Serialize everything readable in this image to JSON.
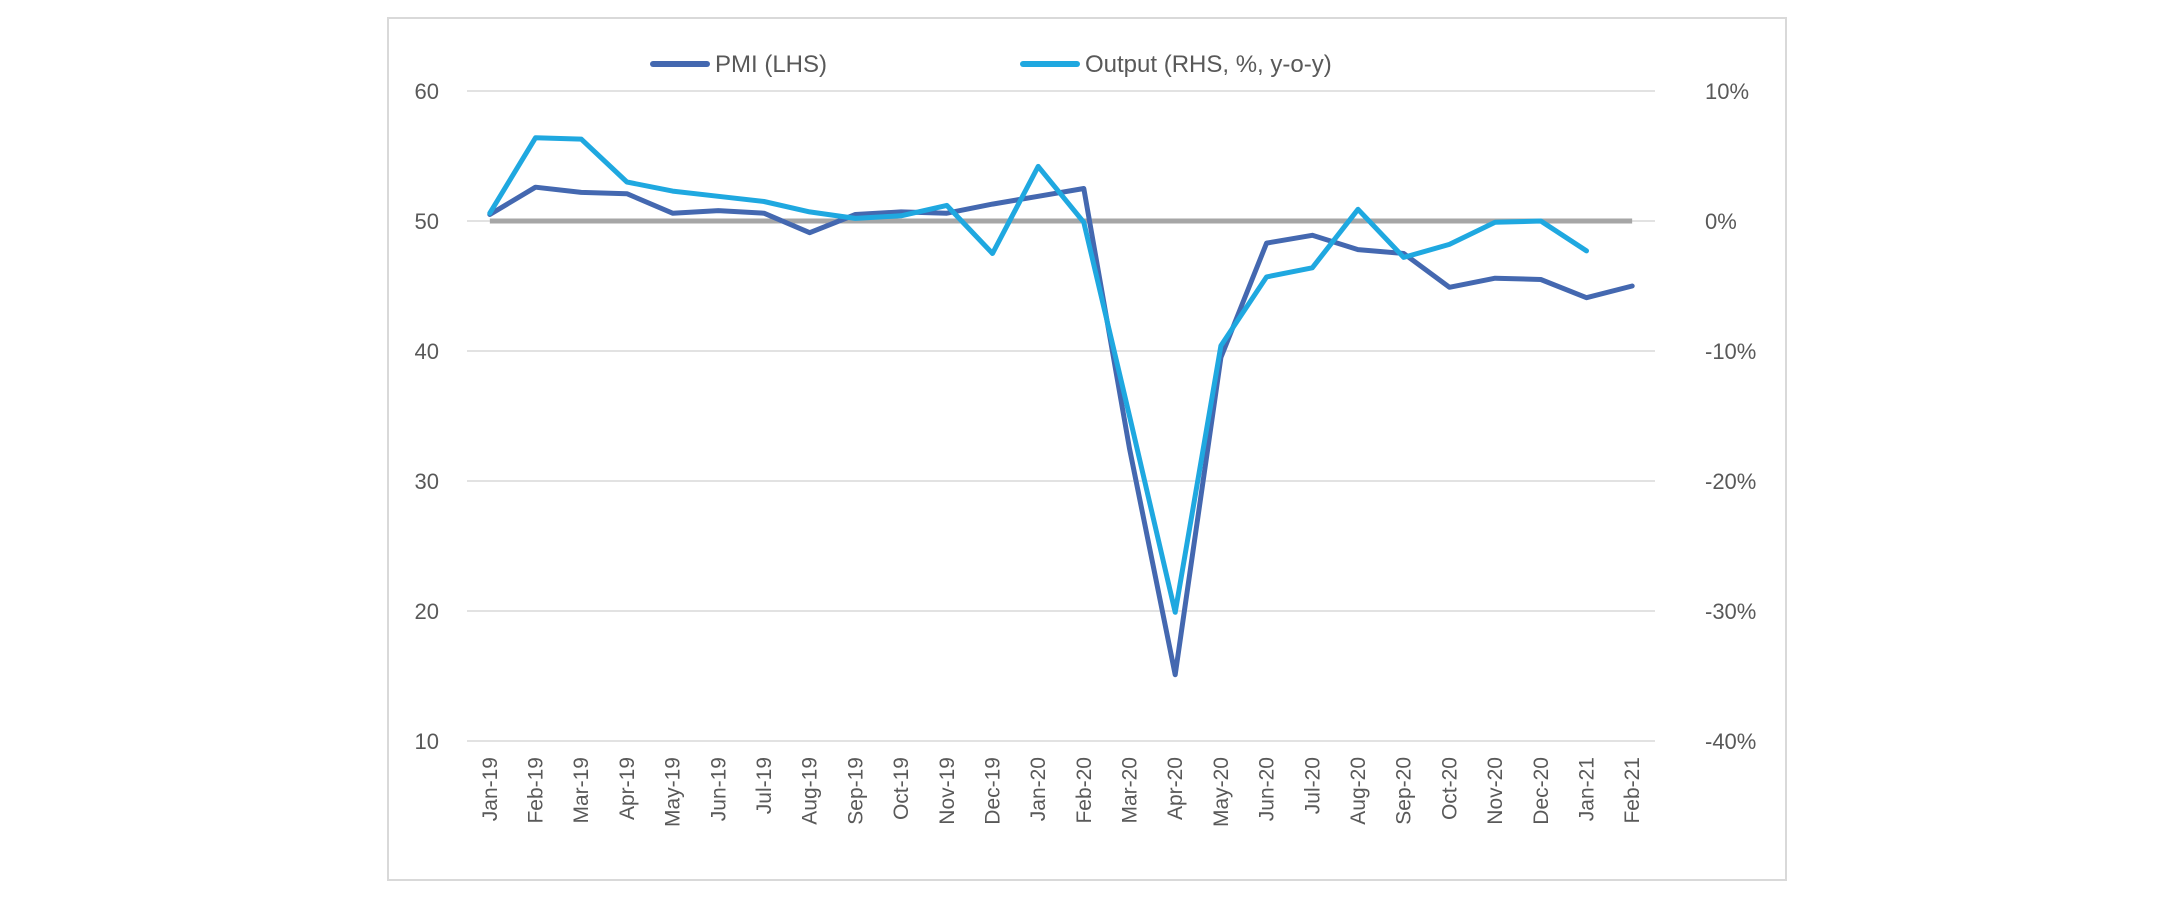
{
  "chart_data": {
    "type": "line",
    "title": "",
    "categories": [
      "Jan-19",
      "Feb-19",
      "Mar-19",
      "Apr-19",
      "May-19",
      "Jun-19",
      "Jul-19",
      "Aug-19",
      "Sep-19",
      "Oct-19",
      "Nov-19",
      "Dec-19",
      "Jan-20",
      "Feb-20",
      "Mar-20",
      "Apr-20",
      "May-20",
      "Jun-20",
      "Jul-20",
      "Aug-20",
      "Sep-20",
      "Oct-20",
      "Nov-20",
      "Dec-20",
      "Jan-21",
      "Feb-21"
    ],
    "left_axis": {
      "ylim": [
        10,
        60
      ],
      "ticks": [
        "10",
        "20",
        "30",
        "40",
        "50",
        "60"
      ]
    },
    "right_axis": {
      "ylim": [
        -0.4,
        0.1
      ],
      "ticks": [
        "-40%",
        "-30%",
        "-20%",
        "-10%",
        "0%",
        "10%"
      ]
    },
    "grid": true,
    "legend_position": "top",
    "series": [
      {
        "name": "PMI (LHS)",
        "axis": "left",
        "color": "#4468b0",
        "values": [
          50.5,
          52.6,
          52.2,
          52.1,
          50.6,
          50.8,
          50.6,
          49.1,
          50.5,
          50.7,
          50.6,
          51.3,
          51.9,
          52.5,
          32.5,
          15.1,
          39.5,
          48.3,
          48.9,
          47.8,
          47.5,
          44.9,
          45.6,
          45.5,
          44.1,
          45.0
        ]
      },
      {
        "name": "Output (RHS, %, y-o-y)",
        "axis": "right",
        "color": "#1fa8e0",
        "values": [
          0.006,
          0.064,
          0.063,
          0.03,
          0.023,
          0.019,
          0.015,
          0.007,
          0.002,
          0.004,
          0.012,
          -0.025,
          0.042,
          -0.001,
          -0.15,
          -0.301,
          -0.096,
          -0.043,
          -0.036,
          0.009,
          -0.028,
          -0.018,
          -0.001,
          0.0,
          -0.023,
          null
        ]
      }
    ],
    "reference_line": {
      "axis": "left",
      "value": 50,
      "color": "#a6a6a6"
    }
  }
}
